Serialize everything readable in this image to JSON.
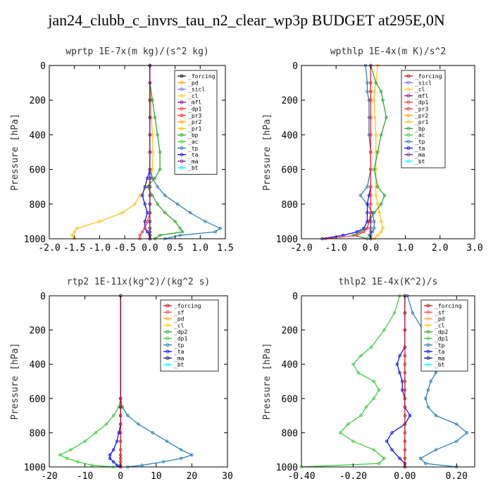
{
  "title": "jan24_clubb_c_invrs_tau_n2_clear_wp3p  BUDGET at295E,0N",
  "chart_data": [
    {
      "type": "line",
      "title": "wprtp  1E-7x(m kg)/(s^2 kg)",
      "ylabel": "Pressure [hPa]",
      "xlim": [
        -2.0,
        1.5
      ],
      "ylim": [
        1000,
        0
      ],
      "xticks": [
        -2.0,
        -1.5,
        -1.0,
        -0.5,
        0.0,
        0.5,
        1.0,
        1.5
      ],
      "xtick_labels": [
        "-2.0",
        "-1.5",
        "-1.0",
        "-0.5",
        "0.0",
        "0.5",
        "1.0",
        "1.5"
      ],
      "yticks": [
        0,
        200,
        400,
        600,
        800,
        1000
      ],
      "ytick_labels": [
        "0",
        "200",
        "400",
        "600",
        "800",
        "1000"
      ],
      "legend": [
        "_forcing",
        "_pd",
        "_sicl",
        "_cl",
        "_mfl",
        "_dp1",
        "_pr3",
        "_pr2",
        "_pr1",
        "_bp",
        "_ac",
        "_tp",
        "_ta",
        "_ma",
        "_bt"
      ],
      "levels": [
        0,
        100,
        200,
        300,
        400,
        500,
        600,
        650,
        700,
        750,
        800,
        850,
        900,
        940,
        960,
        980,
        1000
      ],
      "series": [
        {
          "name": "_pr1",
          "color": "#ffc000",
          "values": [
            0,
            0,
            0.02,
            0.03,
            0.05,
            0.06,
            0.05,
            0.03,
            -0.05,
            -0.2,
            -0.3,
            -0.55,
            -1.0,
            -1.45,
            -1.5,
            -1.55,
            -1.5
          ]
        },
        {
          "name": "_bp",
          "color": "#22a022",
          "values": [
            0,
            0,
            0.05,
            0.1,
            0.15,
            0.2,
            0.2,
            0.1,
            -0.05,
            0.05,
            0.15,
            0.3,
            0.5,
            0.6,
            0.65,
            0.2,
            0.1
          ]
        },
        {
          "name": "_tp",
          "color": "#1f77b4",
          "values": [
            0,
            0,
            0,
            0,
            0,
            0,
            0,
            0.05,
            0.15,
            0.3,
            0.55,
            0.8,
            1.1,
            1.4,
            1.3,
            0.6,
            0.3
          ]
        },
        {
          "name": "_ta",
          "color": "#0000ff",
          "values": [
            0,
            0,
            0,
            0,
            0,
            0,
            0,
            -0.05,
            -0.1,
            -0.15,
            -0.1,
            -0.05,
            -0.1,
            -0.1,
            -0.05,
            0,
            0
          ]
        },
        {
          "name": "_dp1",
          "color": "#ff3030",
          "values": [
            0,
            0,
            0,
            0,
            0,
            0,
            0,
            0,
            0,
            0,
            0,
            0,
            -0.05,
            -0.1,
            -0.15,
            -0.2,
            -0.2
          ]
        },
        {
          "name": "_forcing",
          "color": "#000000",
          "values": [
            0,
            0,
            0,
            0,
            0,
            0,
            0,
            0,
            0,
            0,
            0,
            0,
            0,
            0,
            0,
            0,
            0
          ]
        },
        {
          "name": "_ma",
          "color": "#7a1a7a",
          "values": [
            0,
            0,
            0,
            0,
            0,
            0,
            0,
            0,
            0,
            0,
            0,
            0,
            0,
            0,
            0,
            0,
            0
          ]
        }
      ]
    },
    {
      "type": "line",
      "title": "wpthlp  1E-4x(m K)/s^2",
      "ylabel": "Pressure [hPa]",
      "xlim": [
        -2.0,
        3.0
      ],
      "ylim": [
        1000,
        0
      ],
      "xticks": [
        -2.0,
        -1.0,
        0.0,
        1.0,
        2.0,
        3.0
      ],
      "xtick_labels": [
        "-2.0",
        "-1.0",
        "0.0",
        "1.0",
        "2.0",
        "3.0"
      ],
      "yticks": [
        0,
        200,
        400,
        600,
        800,
        1000
      ],
      "ytick_labels": [
        "0",
        "200",
        "400",
        "600",
        "800",
        "1000"
      ],
      "legend": [
        "_forcing",
        "_sicl",
        "_cl",
        "_mfl",
        "_dp1",
        "_pr3",
        "_pr2",
        "_pr1",
        "_bp",
        "_ac",
        "_tp",
        "_ta",
        "_ma",
        "_bt"
      ],
      "levels": [
        0,
        100,
        150,
        200,
        300,
        400,
        500,
        600,
        700,
        750,
        800,
        850,
        900,
        940,
        960,
        980,
        1000
      ],
      "series": [
        {
          "name": "_pr1",
          "color": "#ffc000",
          "values": [
            0.2,
            0.15,
            0.1,
            0.1,
            0.12,
            0.15,
            0.15,
            0.15,
            0.15,
            0.15,
            0.2,
            0.25,
            0.3,
            0.35,
            0.3,
            0.2,
            0.1
          ]
        },
        {
          "name": "_bp",
          "color": "#22a022",
          "values": [
            0,
            0.15,
            0.3,
            0.35,
            0.45,
            0.3,
            0.2,
            0.1,
            0.2,
            0.4,
            0.3,
            0.1,
            -0.05,
            -0.1,
            -0.3,
            -0.5,
            -0.1
          ]
        },
        {
          "name": "_tp",
          "color": "#1f77b4",
          "values": [
            -0.15,
            -0.1,
            -0.1,
            -0.05,
            -0.05,
            -0.05,
            0,
            0,
            -0.1,
            -0.3,
            -0.1,
            0.05,
            0.1,
            0.1,
            0.05,
            -0.05,
            0
          ]
        },
        {
          "name": "_ta",
          "color": "#0000ff",
          "values": [
            0,
            0,
            0,
            0,
            0,
            0,
            0,
            0,
            0,
            -0.05,
            -0.1,
            -0.1,
            -0.1,
            -0.2,
            -0.4,
            -0.8,
            -1.4
          ]
        },
        {
          "name": "_ma",
          "color": "#7a1a7a",
          "values": [
            0,
            0,
            0,
            0,
            0,
            0,
            0,
            0,
            0,
            0,
            0,
            0,
            0,
            0,
            0,
            0,
            0
          ]
        },
        {
          "name": "_dp1",
          "color": "#ff3030",
          "values": [
            0,
            0,
            0,
            0,
            0,
            0,
            0,
            0,
            0,
            0,
            0,
            0,
            -0.05,
            -0.1,
            -0.2,
            -0.4,
            -1.3
          ]
        }
      ]
    },
    {
      "type": "line",
      "title": "rtp2  1E-11x(kg^2)/(kg^2 s)",
      "ylabel": "Pressure [hPa]",
      "xlim": [
        -20,
        30
      ],
      "ylim": [
        1000,
        0
      ],
      "xticks": [
        -20,
        -10,
        0,
        10,
        20,
        30
      ],
      "xtick_labels": [
        "-20",
        "-10",
        "0",
        "10",
        "20",
        "30"
      ],
      "yticks": [
        0,
        200,
        400,
        600,
        800,
        1000
      ],
      "ytick_labels": [
        "0",
        "200",
        "400",
        "600",
        "800",
        "1000"
      ],
      "legend": [
        "_forcing",
        "_sf",
        "_pd",
        "_cl",
        "_dp2",
        "_dp1",
        "_tp",
        "_ta",
        "_ma",
        "_bt"
      ],
      "levels": [
        0,
        600,
        650,
        700,
        750,
        800,
        850,
        900,
        930,
        950,
        970,
        990,
        1000
      ],
      "series": [
        {
          "name": "_dp1",
          "color": "#33cc33",
          "values": [
            0,
            0,
            -0.5,
            -2,
            -4,
            -7,
            -10,
            -14,
            -17,
            -15,
            -12,
            -8,
            -2
          ]
        },
        {
          "name": "_tp",
          "color": "#1f77b4",
          "values": [
            0,
            0,
            0.5,
            2,
            5,
            9,
            13,
            17,
            20,
            17,
            12,
            6,
            2
          ]
        },
        {
          "name": "_ta",
          "color": "#0000ff",
          "values": [
            0,
            0,
            0,
            0,
            0,
            -0.5,
            -1,
            -2,
            -3,
            -3,
            -2,
            -1,
            0
          ]
        },
        {
          "name": "_forcing",
          "color": "#cc0000",
          "values": [
            0,
            0,
            0,
            0,
            0,
            0,
            0,
            0,
            0,
            0,
            0,
            0,
            0
          ]
        }
      ]
    },
    {
      "type": "line",
      "title": "thlp2  1E-4x(K^2)/s",
      "ylabel": "Pressure [hPa]",
      "xlim": [
        -0.4,
        0.27
      ],
      "ylim": [
        1000,
        0
      ],
      "xticks": [
        -0.4,
        -0.2,
        0.0,
        0.2
      ],
      "xtick_labels": [
        "-0.40",
        "-0.20",
        "0.00",
        "0.20"
      ],
      "yticks": [
        0,
        200,
        400,
        600,
        800,
        1000
      ],
      "ytick_labels": [
        "0",
        "200",
        "400",
        "600",
        "800",
        "1000"
      ],
      "legend": [
        "_forcing",
        "_sf",
        "_pd",
        "_cl",
        "_dp2",
        "_dp1",
        "_tp",
        "_ta",
        "_ma",
        "_bt"
      ],
      "levels": [
        0,
        100,
        200,
        300,
        350,
        400,
        450,
        500,
        550,
        600,
        650,
        700,
        750,
        800,
        850,
        900,
        950,
        980,
        1000
      ],
      "series": [
        {
          "name": "_dp1",
          "color": "#33cc33",
          "values": [
            -0.02,
            -0.04,
            -0.08,
            -0.13,
            -0.17,
            -0.2,
            -0.18,
            -0.12,
            -0.1,
            -0.12,
            -0.15,
            -0.17,
            -0.22,
            -0.25,
            -0.2,
            -0.12,
            -0.08,
            -0.1,
            -0.4
          ]
        },
        {
          "name": "_tp",
          "color": "#1f77b4",
          "values": [
            0.01,
            0.03,
            0.07,
            0.11,
            0.12,
            0.12,
            0.12,
            0.1,
            0.09,
            0.08,
            0.09,
            0.12,
            0.2,
            0.24,
            0.2,
            0.12,
            0.06,
            0.08,
            0.2
          ]
        },
        {
          "name": "_ta",
          "color": "#0000ff",
          "values": [
            0,
            0,
            0,
            0,
            -0.02,
            -0.03,
            -0.02,
            -0.01,
            -0.01,
            0,
            0,
            0.02,
            0,
            -0.05,
            -0.07,
            -0.05,
            -0.02,
            0,
            0
          ]
        },
        {
          "name": "_forcing",
          "color": "#cc0000",
          "values": [
            0,
            0,
            0,
            0,
            0,
            0,
            0,
            0,
            0,
            0,
            0,
            0,
            0,
            0,
            0,
            0,
            0,
            0,
            0
          ]
        }
      ]
    }
  ]
}
